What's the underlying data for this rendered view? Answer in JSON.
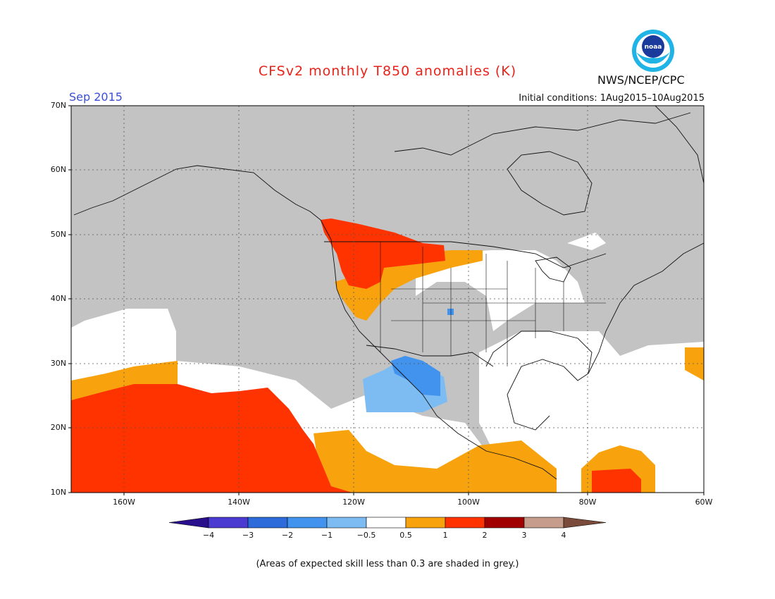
{
  "title": "CFSv2 monthly T850 anomalies (K)",
  "month": "Sep 2015",
  "initial_conditions": "Initial conditions: 1Aug2015–10Aug2015",
  "agency": "NWS/NCEP/CPC",
  "logo_text": "noaa",
  "lat_labels": [
    "70N",
    "60N",
    "50N",
    "40N",
    "30N",
    "20N",
    "10N"
  ],
  "lon_labels": [
    "160W",
    "140W",
    "120W",
    "100W",
    "80W",
    "60W"
  ],
  "colorbar": {
    "colors": [
      "#2a0f8c",
      "#4b3bd0",
      "#2c6bd9",
      "#4193ee",
      "#7dbcf2",
      "#ffffff",
      "#f8a30e",
      "#ff3300",
      "#a00000",
      "#c69d8c",
      "#7a4a3a"
    ],
    "labels": [
      "−4",
      "−3",
      "−2",
      "−1",
      "−0.5",
      "0.5",
      "1",
      "2",
      "3",
      "4"
    ]
  },
  "note": "(Areas of expected skill less than 0.3 are shaded in grey.)",
  "colors": {
    "grey_low_skill": "#c3c3c3",
    "neutral": "#ffffff",
    "warm_0_5_1": "#f8a30e",
    "warm_1_2": "#ff3300",
    "cool_0_5_1": "#7dbcf2",
    "cool_1_2": "#4193ee"
  }
}
